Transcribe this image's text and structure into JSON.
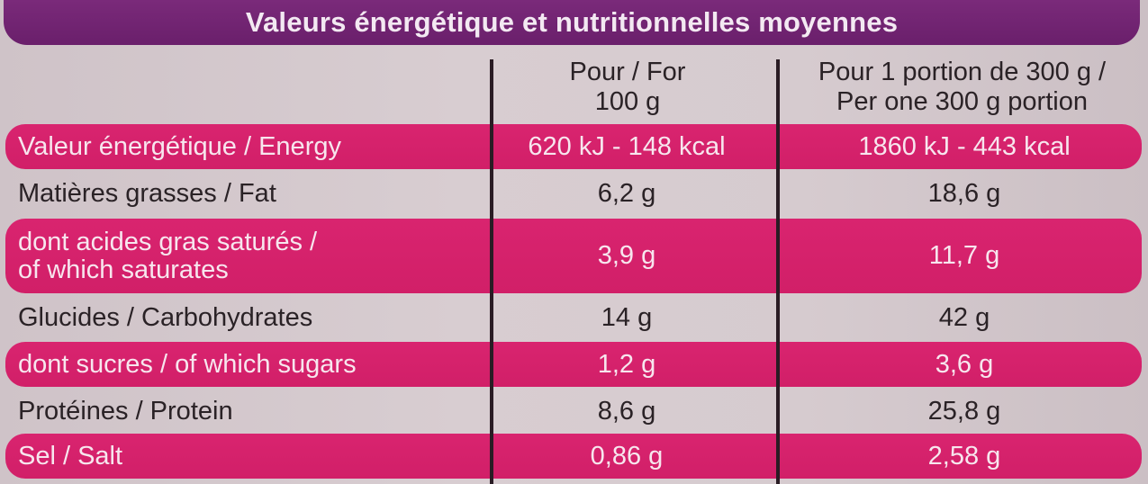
{
  "title": "Valeurs énergétique et nutritionnelles moyennes",
  "headers": {
    "per_100_line1": "Pour / For",
    "per_100_line2": "100 g",
    "per_portion_line1": "Pour 1 portion de 300 g /",
    "per_portion_line2": "Per one 300 g portion"
  },
  "rows": [
    {
      "label": "Valeur énergétique / Energy",
      "per_100": "620 kJ - 148 kcal",
      "per_portion": "1860 kJ - 443 kcal"
    },
    {
      "label": "Matières grasses / Fat",
      "per_100": "6,2 g",
      "per_portion": "18,6 g"
    },
    {
      "label_line1": "dont acides gras saturés /",
      "label_line2": "of which saturates",
      "per_100": "3,9 g",
      "per_portion": "11,7 g"
    },
    {
      "label": "Glucides / Carbohydrates",
      "per_100": "14 g",
      "per_portion": "42 g"
    },
    {
      "label": "dont sucres / of which sugars",
      "per_100": "1,2 g",
      "per_portion": "3,6 g"
    },
    {
      "label": "Protéines / Protein",
      "per_100": "8,6 g",
      "per_portion": "25,8 g"
    },
    {
      "label": "Sel / Salt",
      "per_100": "0,86 g",
      "per_portion": "2,58 g"
    }
  ],
  "colors": {
    "title_bar": "#6a1f6b",
    "pink_row": "#d6226b",
    "background": "#d3c8cc",
    "divider": "#2a1c24"
  }
}
